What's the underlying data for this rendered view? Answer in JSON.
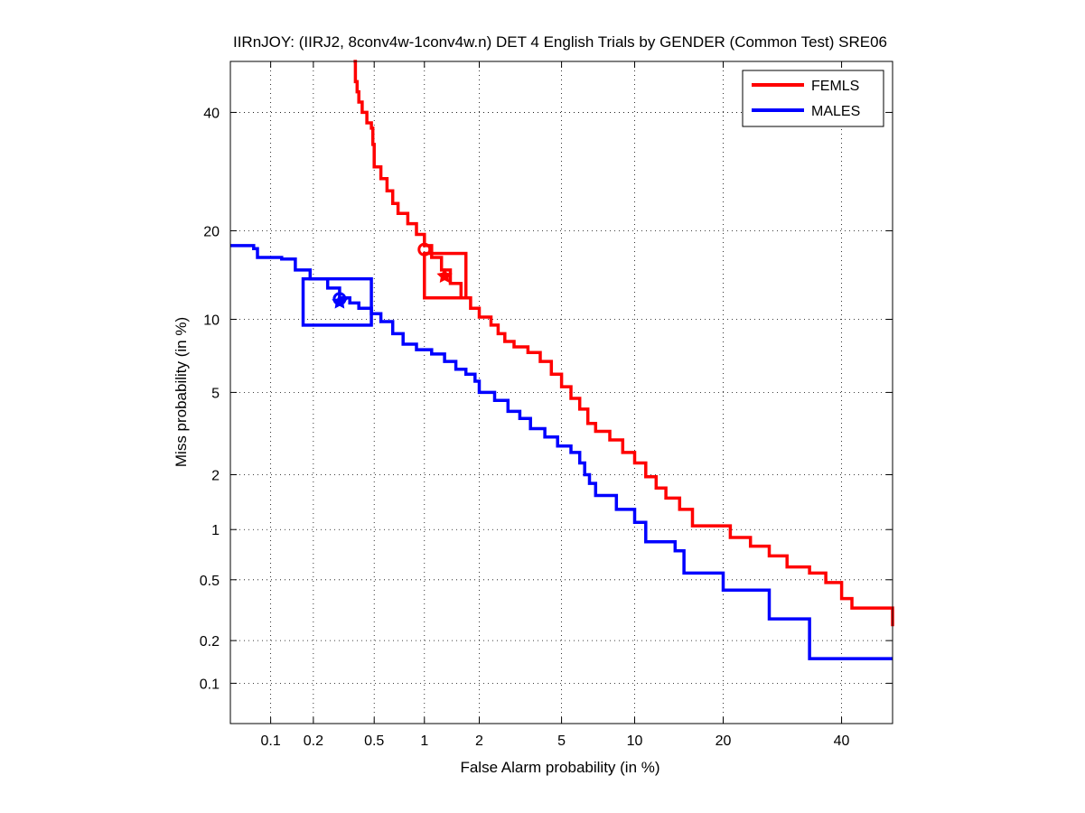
{
  "chart_data": {
    "type": "line",
    "title": "IIRnJOY: (IIRJ2, 8conv4w-1conv4w.n) DET 4 English Trials by GENDER (Common Test) SRE06",
    "xlabel": "False Alarm probability (in %)",
    "ylabel": "Miss probability (in %)",
    "scale": "normal-deviate (probit) on both axes",
    "xlim": [
      0.05,
      50
    ],
    "ylim": [
      0.05,
      50
    ],
    "x_ticks": [
      0.1,
      0.2,
      0.5,
      1,
      2,
      5,
      10,
      20,
      40
    ],
    "x_tick_labels": [
      "0.1",
      "0.2",
      "0.5",
      "1",
      "2",
      "5",
      "10",
      "20",
      "40"
    ],
    "y_ticks": [
      0.1,
      0.2,
      0.5,
      1,
      2,
      5,
      10,
      20,
      40
    ],
    "y_tick_labels": [
      "0.1",
      "0.2",
      "0.5",
      "1",
      "2",
      "5",
      "10",
      "20",
      "40"
    ],
    "grid": true,
    "legend_position": "top-right",
    "series": [
      {
        "name": "FEMLS",
        "color": "#ff0000",
        "points": [
          [
            0.37,
            50
          ],
          [
            0.38,
            46
          ],
          [
            0.39,
            44
          ],
          [
            0.4,
            42
          ],
          [
            0.42,
            40
          ],
          [
            0.45,
            38
          ],
          [
            0.48,
            37
          ],
          [
            0.49,
            34
          ],
          [
            0.5,
            30
          ],
          [
            0.55,
            28
          ],
          [
            0.6,
            26
          ],
          [
            0.65,
            24
          ],
          [
            0.7,
            22.5
          ],
          [
            0.8,
            21
          ],
          [
            0.9,
            19.5
          ],
          [
            1.0,
            18
          ],
          [
            1.1,
            16.5
          ],
          [
            1.25,
            15
          ],
          [
            1.4,
            13.5
          ],
          [
            1.6,
            12
          ],
          [
            1.8,
            11
          ],
          [
            2.0,
            10.2
          ],
          [
            2.3,
            9.5
          ],
          [
            2.5,
            8.8
          ],
          [
            2.7,
            8.2
          ],
          [
            3.0,
            7.8
          ],
          [
            3.5,
            7.4
          ],
          [
            4.0,
            6.8
          ],
          [
            4.5,
            6.0
          ],
          [
            5.0,
            5.3
          ],
          [
            5.5,
            4.7
          ],
          [
            6.0,
            4.2
          ],
          [
            6.5,
            3.6
          ],
          [
            7.0,
            3.3
          ],
          [
            8.0,
            3.0
          ],
          [
            9.0,
            2.6
          ],
          [
            10.0,
            2.3
          ],
          [
            11.0,
            1.95
          ],
          [
            12.0,
            1.7
          ],
          [
            13.0,
            1.5
          ],
          [
            14.5,
            1.3
          ],
          [
            16.0,
            1.05
          ],
          [
            20.0,
            1.05
          ],
          [
            21.0,
            0.9
          ],
          [
            24.0,
            0.8
          ],
          [
            27.0,
            0.7
          ],
          [
            30.0,
            0.6
          ],
          [
            34.0,
            0.55
          ],
          [
            37.0,
            0.48
          ],
          [
            40.0,
            0.38
          ],
          [
            42.0,
            0.33
          ],
          [
            50.0,
            0.25
          ]
        ]
      },
      {
        "name": "MALES",
        "color": "#0000ff",
        "points": [
          [
            0.05,
            18
          ],
          [
            0.075,
            17.6
          ],
          [
            0.08,
            16.5
          ],
          [
            0.12,
            16.3
          ],
          [
            0.15,
            15
          ],
          [
            0.19,
            14
          ],
          [
            0.25,
            13
          ],
          [
            0.3,
            12
          ],
          [
            0.35,
            11.5
          ],
          [
            0.4,
            11
          ],
          [
            0.48,
            10.5
          ],
          [
            0.55,
            9.8
          ],
          [
            0.65,
            8.8
          ],
          [
            0.75,
            8.0
          ],
          [
            0.9,
            7.6
          ],
          [
            1.1,
            7.3
          ],
          [
            1.3,
            6.8
          ],
          [
            1.5,
            6.3
          ],
          [
            1.7,
            6.0
          ],
          [
            1.9,
            5.6
          ],
          [
            2.0,
            5.0
          ],
          [
            2.4,
            4.6
          ],
          [
            2.8,
            4.1
          ],
          [
            3.2,
            3.8
          ],
          [
            3.6,
            3.4
          ],
          [
            4.2,
            3.1
          ],
          [
            4.8,
            2.8
          ],
          [
            5.5,
            2.6
          ],
          [
            6.0,
            2.3
          ],
          [
            6.3,
            2.0
          ],
          [
            6.6,
            1.8
          ],
          [
            7.0,
            1.55
          ],
          [
            8.5,
            1.3
          ],
          [
            10.0,
            1.1
          ],
          [
            11.0,
            0.85
          ],
          [
            13.0,
            0.85
          ],
          [
            14.0,
            0.75
          ],
          [
            15.0,
            0.55
          ],
          [
            20.0,
            0.43
          ],
          [
            27.0,
            0.28
          ],
          [
            34.0,
            0.15
          ],
          [
            50.0,
            0.15
          ]
        ]
      }
    ],
    "annotations": [
      {
        "series": "FEMLS",
        "marker": "circle",
        "x": 1.0,
        "y": 17.5
      },
      {
        "series": "FEMLS",
        "marker": "star",
        "x": 1.3,
        "y": 14.3
      },
      {
        "series": "FEMLS",
        "marker": "box",
        "x_range": [
          1.0,
          1.7
        ],
        "y_range": [
          12.0,
          17.0
        ]
      },
      {
        "series": "MALES",
        "marker": "circle",
        "x": 0.3,
        "y": 11.9
      },
      {
        "series": "MALES",
        "marker": "star",
        "x": 0.3,
        "y": 11.6
      },
      {
        "series": "MALES",
        "marker": "box",
        "x_range": [
          0.17,
          0.48
        ],
        "y_range": [
          9.5,
          14.0
        ]
      }
    ]
  }
}
